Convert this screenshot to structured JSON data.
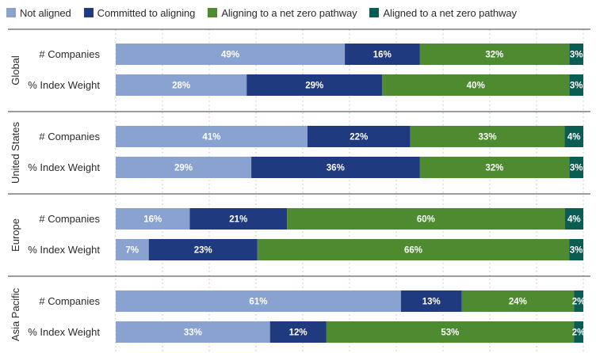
{
  "chart_data": {
    "type": "bar",
    "orientation": "horizontal",
    "stacked": true,
    "percent_scale": true,
    "title": "",
    "xlim": [
      0,
      100
    ],
    "grid": true,
    "legend_position": "top-left",
    "series": [
      {
        "name": "Not aligned",
        "color": "#8aa2cf"
      },
      {
        "name": "Committed to aligning",
        "color": "#1f3a7e"
      },
      {
        "name": "Aligning to a net zero pathway",
        "color": "#4e8a2f"
      },
      {
        "name": "Aligned to a net zero pathway",
        "color": "#0b5c52"
      }
    ],
    "groups": [
      {
        "name": "Global",
        "rows": [
          {
            "label": "# Companies",
            "values": [
              49,
              16,
              32,
              3
            ]
          },
          {
            "label": "% Index Weight",
            "values": [
              28,
              29,
              40,
              3
            ]
          }
        ]
      },
      {
        "name": "United States",
        "rows": [
          {
            "label": "# Companies",
            "values": [
              41,
              22,
              33,
              4
            ]
          },
          {
            "label": "% Index Weight",
            "values": [
              29,
              36,
              32,
              3
            ]
          }
        ]
      },
      {
        "name": "Europe",
        "rows": [
          {
            "label": "# Companies",
            "values": [
              16,
              21,
              60,
              4
            ]
          },
          {
            "label": "% Index Weight",
            "values": [
              7,
              23,
              66,
              3
            ]
          }
        ]
      },
      {
        "name": "Asia Pacific",
        "rows": [
          {
            "label": "# Companies",
            "values": [
              61,
              13,
              24,
              2
            ]
          },
          {
            "label": "% Index Weight",
            "values": [
              33,
              12,
              53,
              2
            ]
          }
        ]
      }
    ]
  }
}
